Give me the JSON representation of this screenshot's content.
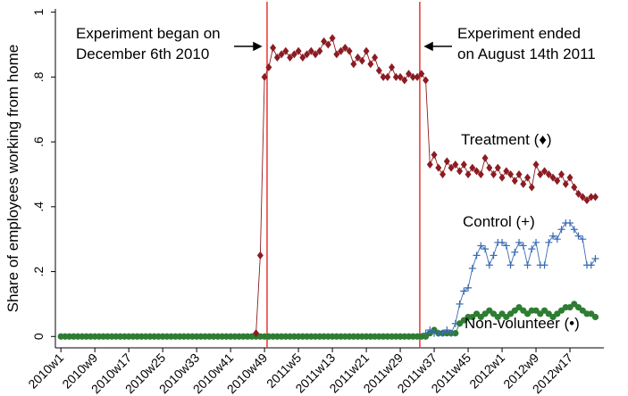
{
  "chart_data": {
    "type": "line",
    "y_label": "Share of employees working from home",
    "xlim": [
      -1.3,
      128
    ],
    "ylim": [
      -0.035,
      1.01
    ],
    "xticks": [
      {
        "value": 0,
        "label": "2010w1"
      },
      {
        "value": 8,
        "label": "2010w9"
      },
      {
        "value": 16,
        "label": "2010w17"
      },
      {
        "value": 24,
        "label": "2010w25"
      },
      {
        "value": 32,
        "label": "2010w33"
      },
      {
        "value": 40,
        "label": "2010w41"
      },
      {
        "value": 48,
        "label": "2010w49"
      },
      {
        "value": 56,
        "label": "2011w5"
      },
      {
        "value": 64,
        "label": "2011w13"
      },
      {
        "value": 72,
        "label": "2011w21"
      },
      {
        "value": 80,
        "label": "2011w29"
      },
      {
        "value": 88,
        "label": "2011w37"
      },
      {
        "value": 96,
        "label": "2011w45"
      },
      {
        "value": 104,
        "label": "2012w1"
      },
      {
        "value": 112,
        "label": "2012w9"
      },
      {
        "value": 120,
        "label": "2012w17"
      }
    ],
    "yticks": [
      0,
      {
        "value": 0.2,
        "label": ".2"
      },
      {
        "value": 0.4,
        "label": ".4"
      },
      {
        "value": 0.6,
        "label": ".6"
      },
      {
        "value": 0.8,
        "label": ".8"
      },
      1
    ],
    "vlines": [
      48.6,
      84.6
    ],
    "annotations": [
      {
        "lines": [
          "Experiment began on",
          "December 6th 2010"
        ]
      },
      {
        "lines": [
          "Experiment ended",
          "on August 14th 2011"
        ]
      }
    ],
    "x": [
      0,
      1,
      2,
      3,
      4,
      5,
      6,
      7,
      8,
      9,
      10,
      11,
      12,
      13,
      14,
      15,
      16,
      17,
      18,
      19,
      20,
      21,
      22,
      23,
      24,
      25,
      26,
      27,
      28,
      29,
      30,
      31,
      32,
      33,
      34,
      35,
      36,
      37,
      38,
      39,
      40,
      41,
      42,
      43,
      44,
      45,
      46,
      47,
      48,
      49,
      50,
      51,
      52,
      53,
      54,
      55,
      56,
      57,
      58,
      59,
      60,
      61,
      62,
      63,
      64,
      65,
      66,
      67,
      68,
      69,
      70,
      71,
      72,
      73,
      74,
      75,
      76,
      77,
      78,
      79,
      80,
      81,
      82,
      83,
      84,
      85,
      86,
      87,
      88,
      89,
      90,
      91,
      92,
      93,
      94,
      95,
      96,
      97,
      98,
      99,
      100,
      101,
      102,
      103,
      104,
      105,
      106,
      107,
      108,
      109,
      110,
      111,
      112,
      113,
      114,
      115,
      116,
      117,
      118,
      119,
      120,
      121,
      122,
      123,
      124,
      125,
      126
    ],
    "series": [
      {
        "name": "Non-volunteer (•)",
        "color": "#2e7d32",
        "marker": "circle",
        "values": [
          0,
          0,
          0,
          0,
          0,
          0,
          0,
          0,
          0,
          0,
          0,
          0,
          0,
          0,
          0,
          0,
          0,
          0,
          0,
          0,
          0,
          0,
          0,
          0,
          0,
          0,
          0,
          0,
          0,
          0,
          0,
          0,
          0,
          0,
          0,
          0,
          0,
          0,
          0,
          0,
          0,
          0,
          0,
          0,
          0,
          0,
          0,
          0,
          0,
          0,
          0,
          0,
          0,
          0,
          0,
          0,
          0,
          0,
          0,
          0,
          0,
          0,
          0,
          0,
          0,
          0,
          0,
          0,
          0,
          0,
          0,
          0,
          0,
          0,
          0,
          0,
          0,
          0,
          0,
          0,
          0,
          0,
          0,
          0,
          0,
          0,
          0,
          0.01,
          0.02,
          0.01,
          0.01,
          0.01,
          0.01,
          0.01,
          0.04,
          0.05,
          0.06,
          0.06,
          0.07,
          0.06,
          0.07,
          0.08,
          0.07,
          0.06,
          0.07,
          0.06,
          0.07,
          0.08,
          0.09,
          0.08,
          0.07,
          0.08,
          0.08,
          0.07,
          0.08,
          0.07,
          0.06,
          0.07,
          0.08,
          0.09,
          0.09,
          0.1,
          0.09,
          0.08,
          0.07,
          0.07,
          0.06
        ]
      },
      {
        "name": "Treatment (♦)",
        "color": "#8b1c22",
        "marker": "diamond",
        "values": [
          null,
          null,
          null,
          null,
          null,
          null,
          null,
          null,
          null,
          null,
          null,
          null,
          null,
          null,
          null,
          null,
          null,
          null,
          null,
          null,
          null,
          null,
          null,
          null,
          null,
          null,
          null,
          null,
          null,
          null,
          null,
          null,
          null,
          null,
          null,
          null,
          null,
          null,
          null,
          null,
          null,
          null,
          null,
          null,
          null,
          null,
          0.01,
          0.25,
          0.8,
          0.83,
          0.89,
          0.86,
          0.87,
          0.88,
          0.86,
          0.87,
          0.88,
          0.86,
          0.87,
          0.88,
          0.87,
          0.88,
          0.91,
          0.9,
          0.92,
          0.87,
          0.88,
          0.89,
          0.88,
          0.84,
          0.86,
          0.85,
          0.88,
          0.84,
          0.86,
          0.82,
          0.8,
          0.8,
          0.83,
          0.8,
          0.8,
          0.79,
          0.81,
          0.8,
          0.8,
          0.81,
          0.79,
          0.53,
          0.56,
          0.52,
          0.5,
          0.54,
          0.52,
          0.53,
          0.51,
          0.53,
          0.5,
          0.52,
          0.51,
          0.5,
          0.55,
          0.52,
          0.5,
          0.52,
          0.49,
          0.51,
          0.5,
          0.48,
          0.5,
          0.47,
          0.49,
          0.46,
          0.53,
          0.5,
          0.51,
          0.5,
          0.49,
          0.48,
          0.5,
          0.47,
          0.49,
          0.46,
          0.44,
          0.43,
          0.42,
          0.43,
          0.43
        ]
      },
      {
        "name": "Control (+)",
        "color": "#3a6bb4",
        "marker": "plus",
        "values": [
          null,
          null,
          null,
          null,
          null,
          null,
          null,
          null,
          null,
          null,
          null,
          null,
          null,
          null,
          null,
          null,
          null,
          null,
          null,
          null,
          null,
          null,
          null,
          null,
          null,
          null,
          null,
          null,
          null,
          null,
          null,
          null,
          null,
          null,
          null,
          null,
          null,
          null,
          null,
          null,
          null,
          null,
          null,
          null,
          null,
          null,
          null,
          null,
          null,
          null,
          null,
          null,
          null,
          null,
          null,
          null,
          null,
          null,
          null,
          null,
          null,
          null,
          null,
          null,
          null,
          null,
          null,
          null,
          null,
          null,
          null,
          null,
          null,
          null,
          null,
          null,
          null,
          null,
          null,
          null,
          null,
          null,
          null,
          null,
          null,
          null,
          0.01,
          0.02,
          0.01,
          0.01,
          0.01,
          0.02,
          0.01,
          0.04,
          0.1,
          0.14,
          0.15,
          0.21,
          0.25,
          0.28,
          0.27,
          0.22,
          0.25,
          0.29,
          0.29,
          0.28,
          0.22,
          0.26,
          0.29,
          0.28,
          0.22,
          0.27,
          0.29,
          0.22,
          0.22,
          0.29,
          0.31,
          0.3,
          0.33,
          0.35,
          0.35,
          0.33,
          0.31,
          0.3,
          0.22,
          0.22,
          0.24
        ]
      }
    ]
  }
}
